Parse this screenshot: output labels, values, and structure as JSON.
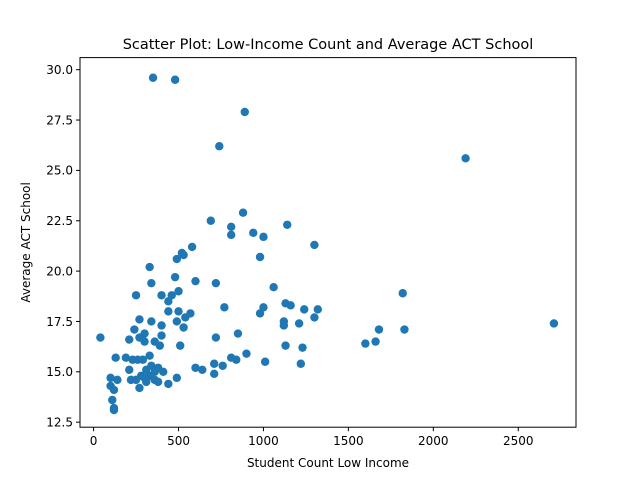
{
  "chart_data": {
    "type": "scatter",
    "title": "Scatter Plot: Low-Income Count and Average ACT School",
    "xlabel": "Student Count Low Income",
    "ylabel": "Average ACT School",
    "xlim": [
      -80,
      2840
    ],
    "ylim": [
      12.25,
      30.6
    ],
    "x_ticks": [
      0,
      500,
      1000,
      1500,
      2000,
      2500
    ],
    "y_ticks": [
      12.5,
      15.0,
      17.5,
      20.0,
      22.5,
      25.0,
      27.5,
      30.0
    ],
    "x_tick_labels": [
      "0",
      "500",
      "1000",
      "1500",
      "2000",
      "2500"
    ],
    "y_tick_labels": [
      "12.5",
      "15.0",
      "17.5",
      "20.0",
      "22.5",
      "25.0",
      "27.5",
      "30.0"
    ],
    "grid": false,
    "marker_color": "#1f77b4",
    "points": [
      {
        "x": 350,
        "y": 29.6
      },
      {
        "x": 480,
        "y": 29.5
      },
      {
        "x": 890,
        "y": 27.9
      },
      {
        "x": 740,
        "y": 26.2
      },
      {
        "x": 2190,
        "y": 25.6
      },
      {
        "x": 880,
        "y": 22.9
      },
      {
        "x": 690,
        "y": 22.5
      },
      {
        "x": 1140,
        "y": 22.3
      },
      {
        "x": 810,
        "y": 22.2
      },
      {
        "x": 940,
        "y": 21.9
      },
      {
        "x": 810,
        "y": 21.8
      },
      {
        "x": 1000,
        "y": 21.7
      },
      {
        "x": 1300,
        "y": 21.3
      },
      {
        "x": 580,
        "y": 21.2
      },
      {
        "x": 520,
        "y": 20.9
      },
      {
        "x": 530,
        "y": 20.8
      },
      {
        "x": 490,
        "y": 20.6
      },
      {
        "x": 980,
        "y": 20.7
      },
      {
        "x": 330,
        "y": 20.2
      },
      {
        "x": 480,
        "y": 19.7
      },
      {
        "x": 600,
        "y": 19.5
      },
      {
        "x": 720,
        "y": 19.4
      },
      {
        "x": 340,
        "y": 19.4
      },
      {
        "x": 1060,
        "y": 19.2
      },
      {
        "x": 500,
        "y": 19.0
      },
      {
        "x": 460,
        "y": 18.8
      },
      {
        "x": 400,
        "y": 18.8
      },
      {
        "x": 250,
        "y": 18.8
      },
      {
        "x": 1820,
        "y": 18.9
      },
      {
        "x": 440,
        "y": 18.5
      },
      {
        "x": 1130,
        "y": 18.4
      },
      {
        "x": 1160,
        "y": 18.3
      },
      {
        "x": 770,
        "y": 18.2
      },
      {
        "x": 1000,
        "y": 18.2
      },
      {
        "x": 1240,
        "y": 18.1
      },
      {
        "x": 1320,
        "y": 18.1
      },
      {
        "x": 440,
        "y": 18.0
      },
      {
        "x": 500,
        "y": 18.0
      },
      {
        "x": 570,
        "y": 17.9
      },
      {
        "x": 980,
        "y": 17.9
      },
      {
        "x": 1300,
        "y": 17.7
      },
      {
        "x": 540,
        "y": 17.7
      },
      {
        "x": 270,
        "y": 17.6
      },
      {
        "x": 340,
        "y": 17.5
      },
      {
        "x": 490,
        "y": 17.5
      },
      {
        "x": 1120,
        "y": 17.5
      },
      {
        "x": 2710,
        "y": 17.4
      },
      {
        "x": 1210,
        "y": 17.4
      },
      {
        "x": 400,
        "y": 17.3
      },
      {
        "x": 530,
        "y": 17.2
      },
      {
        "x": 1120,
        "y": 17.3
      },
      {
        "x": 240,
        "y": 17.1
      },
      {
        "x": 1680,
        "y": 17.1
      },
      {
        "x": 1830,
        "y": 17.1
      },
      {
        "x": 300,
        "y": 16.9
      },
      {
        "x": 850,
        "y": 16.9
      },
      {
        "x": 400,
        "y": 16.8
      },
      {
        "x": 720,
        "y": 16.7
      },
      {
        "x": 40,
        "y": 16.7
      },
      {
        "x": 270,
        "y": 16.7
      },
      {
        "x": 210,
        "y": 16.6
      },
      {
        "x": 300,
        "y": 16.5
      },
      {
        "x": 360,
        "y": 16.5
      },
      {
        "x": 1660,
        "y": 16.5
      },
      {
        "x": 1600,
        "y": 16.4
      },
      {
        "x": 390,
        "y": 16.3
      },
      {
        "x": 510,
        "y": 16.3
      },
      {
        "x": 1130,
        "y": 16.3
      },
      {
        "x": 1230,
        "y": 16.2
      },
      {
        "x": 900,
        "y": 15.9
      },
      {
        "x": 330,
        "y": 15.8
      },
      {
        "x": 130,
        "y": 15.7
      },
      {
        "x": 190,
        "y": 15.7
      },
      {
        "x": 810,
        "y": 15.7
      },
      {
        "x": 230,
        "y": 15.6
      },
      {
        "x": 260,
        "y": 15.6
      },
      {
        "x": 290,
        "y": 15.6
      },
      {
        "x": 840,
        "y": 15.6
      },
      {
        "x": 1010,
        "y": 15.5
      },
      {
        "x": 1220,
        "y": 15.4
      },
      {
        "x": 710,
        "y": 15.4
      },
      {
        "x": 340,
        "y": 15.3
      },
      {
        "x": 760,
        "y": 15.3
      },
      {
        "x": 380,
        "y": 15.2
      },
      {
        "x": 310,
        "y": 15.1
      },
      {
        "x": 210,
        "y": 15.1
      },
      {
        "x": 600,
        "y": 15.2
      },
      {
        "x": 360,
        "y": 15.0
      },
      {
        "x": 640,
        "y": 15.1
      },
      {
        "x": 410,
        "y": 15.0
      },
      {
        "x": 710,
        "y": 14.9
      },
      {
        "x": 280,
        "y": 14.8
      },
      {
        "x": 330,
        "y": 14.8
      },
      {
        "x": 100,
        "y": 14.7
      },
      {
        "x": 490,
        "y": 14.7
      },
      {
        "x": 300,
        "y": 14.7
      },
      {
        "x": 140,
        "y": 14.6
      },
      {
        "x": 220,
        "y": 14.6
      },
      {
        "x": 360,
        "y": 14.6
      },
      {
        "x": 250,
        "y": 14.6
      },
      {
        "x": 380,
        "y": 14.5
      },
      {
        "x": 310,
        "y": 14.5
      },
      {
        "x": 440,
        "y": 14.4
      },
      {
        "x": 100,
        "y": 14.3
      },
      {
        "x": 270,
        "y": 14.2
      },
      {
        "x": 120,
        "y": 14.1
      },
      {
        "x": 110,
        "y": 13.6
      },
      {
        "x": 120,
        "y": 13.2
      },
      {
        "x": 120,
        "y": 13.1
      }
    ]
  }
}
